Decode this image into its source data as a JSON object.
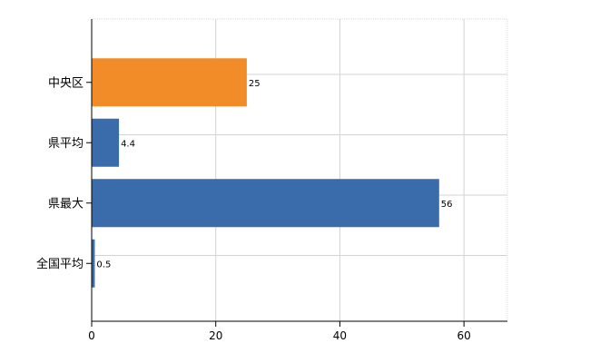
{
  "chart_data": {
    "type": "bar",
    "orientation": "horizontal",
    "categories": [
      "中央区",
      "県平均",
      "県最大",
      "全国平均"
    ],
    "values": [
      25,
      4.4,
      56,
      0.5
    ],
    "value_labels": [
      "25",
      "4.4",
      "56",
      "0.5"
    ],
    "highlight_category": "中央区",
    "colors": {
      "highlight": "#F28C28",
      "default": "#3A6BAA"
    },
    "xlim": [
      0,
      67
    ],
    "xticks": [
      0,
      20,
      40,
      60
    ],
    "xtick_labels": [
      "0",
      "20",
      "40",
      "60"
    ],
    "grid": true,
    "title": "",
    "xlabel": "",
    "ylabel": ""
  }
}
